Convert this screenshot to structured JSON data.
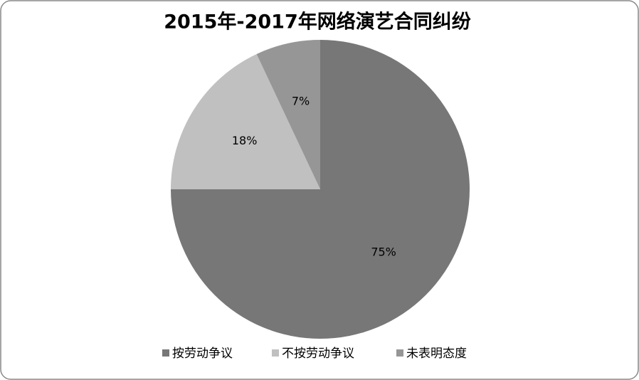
{
  "chart_data": {
    "type": "pie",
    "title": "2015年-2017年网络演艺合同纠纷",
    "categories": [
      "按劳动争议",
      "不按劳动争议",
      "未表明态度"
    ],
    "values": [
      75,
      18,
      7
    ],
    "value_labels": [
      "75%",
      "18%",
      "7%"
    ],
    "colors": [
      "#777777",
      "#c0c0c0",
      "#969696"
    ],
    "legend": "bottom"
  }
}
